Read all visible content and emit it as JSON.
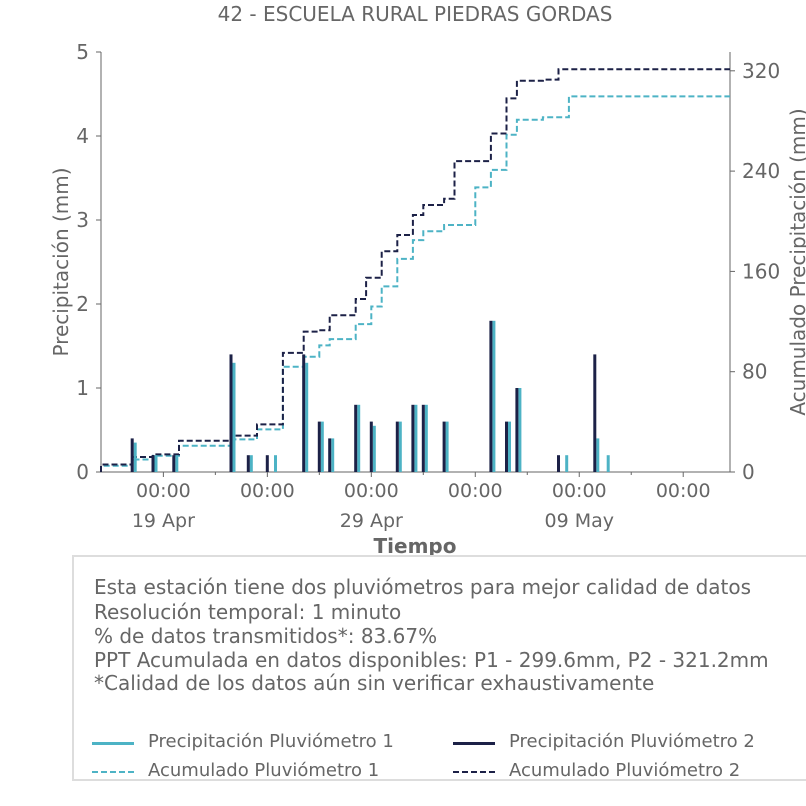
{
  "chart_data": {
    "type": "bar+line",
    "title": "42 - ESCUELA RURAL PIEDRAS GORDAS",
    "xlabel": "Tiempo",
    "ylabel_left": "Precipitación (mm)",
    "ylabel_right": "Acumulado Precipitación (mm)",
    "ylim_left": [
      0,
      5
    ],
    "ylim_right": [
      0,
      335
    ],
    "yticks_left": [
      "0",
      "1",
      "2",
      "3",
      "4",
      "5"
    ],
    "yticks_right": [
      "0",
      "80",
      "160",
      "240",
      "320"
    ],
    "xticks": [
      {
        "top": "00:00",
        "bottom": "19 Apr",
        "date": "2024-04-19"
      },
      {
        "top": "00:00",
        "bottom": "",
        "date": "2024-04-24"
      },
      {
        "top": "00:00",
        "bottom": "29 Apr",
        "date": "2024-04-29"
      },
      {
        "top": "00:00",
        "bottom": "",
        "date": "2024-05-04"
      },
      {
        "top": "00:00",
        "bottom": "09 May",
        "date": "2024-05-09"
      },
      {
        "top": "00:00",
        "bottom": "",
        "date": "2024-05-14"
      }
    ],
    "xlim": [
      "2024-04-16T00:00",
      "2024-05-16T06:00"
    ],
    "colors": {
      "p1": "#4db3c5",
      "p2": "#1c2147",
      "axis": "#666666"
    },
    "series": [
      {
        "name": "Precipitación Pluviómetro 1",
        "type": "bar",
        "axis": "left",
        "points": [
          [
            "2024-04-17T12:00",
            0.35
          ],
          [
            "2024-04-18T12:00",
            0.2
          ],
          [
            "2024-04-19T12:00",
            0.2
          ],
          [
            "2024-04-22T06:00",
            1.3
          ],
          [
            "2024-04-23T02:00",
            0.2
          ],
          [
            "2024-04-24T06:00",
            0.2
          ],
          [
            "2024-04-25T18:00",
            1.3
          ],
          [
            "2024-04-26T12:00",
            0.6
          ],
          [
            "2024-04-27T00:00",
            0.4
          ],
          [
            "2024-04-28T06:00",
            0.8
          ],
          [
            "2024-04-29T00:00",
            0.55
          ],
          [
            "2024-04-30T06:00",
            0.6
          ],
          [
            "2024-05-01T00:00",
            0.8
          ],
          [
            "2024-05-01T12:00",
            0.8
          ],
          [
            "2024-05-02T12:00",
            0.6
          ],
          [
            "2024-05-04T18:00",
            1.8
          ],
          [
            "2024-05-05T12:00",
            0.6
          ],
          [
            "2024-05-06T00:00",
            1.0
          ],
          [
            "2024-05-08T06:00",
            0.2
          ],
          [
            "2024-05-09T18:00",
            0.4
          ],
          [
            "2024-05-10T06:00",
            0.2
          ]
        ]
      },
      {
        "name": "Precipitación Pluviómetro 2",
        "type": "bar",
        "axis": "left",
        "points": [
          [
            "2024-04-17T12:00",
            0.4
          ],
          [
            "2024-04-18T12:00",
            0.2
          ],
          [
            "2024-04-19T12:00",
            0.2
          ],
          [
            "2024-04-22T06:00",
            1.4
          ],
          [
            "2024-04-23T02:00",
            0.2
          ],
          [
            "2024-04-24T00:00",
            0.2
          ],
          [
            "2024-04-25T18:00",
            1.4
          ],
          [
            "2024-04-26T12:00",
            0.6
          ],
          [
            "2024-04-27T00:00",
            0.4
          ],
          [
            "2024-04-28T06:00",
            0.8
          ],
          [
            "2024-04-29T00:00",
            0.6
          ],
          [
            "2024-04-30T06:00",
            0.6
          ],
          [
            "2024-05-01T00:00",
            0.8
          ],
          [
            "2024-05-01T12:00",
            0.8
          ],
          [
            "2024-05-02T12:00",
            0.6
          ],
          [
            "2024-05-04T18:00",
            1.8
          ],
          [
            "2024-05-05T12:00",
            0.6
          ],
          [
            "2024-05-06T00:00",
            1.0
          ],
          [
            "2024-05-08T00:00",
            0.2
          ],
          [
            "2024-05-09T18:00",
            1.4
          ]
        ]
      },
      {
        "name": "Acumulado Pluviómetro 1",
        "type": "step",
        "axis": "right",
        "dash": true,
        "points": [
          [
            "2024-04-16T00:00",
            0
          ],
          [
            "2024-04-17T12:00",
            5
          ],
          [
            "2024-04-18T12:00",
            10
          ],
          [
            "2024-04-19T18:00",
            13
          ],
          [
            "2024-04-22T06:00",
            21
          ],
          [
            "2024-04-23T12:00",
            26
          ],
          [
            "2024-04-24T18:00",
            34
          ],
          [
            "2024-04-25T18:00",
            84
          ],
          [
            "2024-04-26T12:00",
            92
          ],
          [
            "2024-04-27T00:00",
            101
          ],
          [
            "2024-04-28T06:00",
            106
          ],
          [
            "2024-04-29T00:00",
            118
          ],
          [
            "2024-04-29T12:00",
            132
          ],
          [
            "2024-04-30T06:00",
            148
          ],
          [
            "2024-05-01T00:00",
            170
          ],
          [
            "2024-05-01T12:00",
            185
          ],
          [
            "2024-05-02T12:00",
            192
          ],
          [
            "2024-05-04T00:00",
            197
          ],
          [
            "2024-05-04T18:00",
            227
          ],
          [
            "2024-05-05T12:00",
            241
          ],
          [
            "2024-05-06T00:00",
            269
          ],
          [
            "2024-05-07T06:00",
            281
          ],
          [
            "2024-05-08T12:00",
            283
          ],
          [
            "2024-05-09T18:00",
            299.6
          ],
          [
            "2024-05-16T06:00",
            299.6
          ]
        ]
      },
      {
        "name": "Acumulado Pluviómetro 2",
        "type": "step",
        "axis": "right",
        "dash": true,
        "points": [
          [
            "2024-04-16T00:00",
            0
          ],
          [
            "2024-04-17T12:00",
            6
          ],
          [
            "2024-04-18T12:00",
            12
          ],
          [
            "2024-04-19T18:00",
            14
          ],
          [
            "2024-04-22T06:00",
            25
          ],
          [
            "2024-04-23T12:00",
            29
          ],
          [
            "2024-04-24T18:00",
            38
          ],
          [
            "2024-04-25T18:00",
            95
          ],
          [
            "2024-04-26T12:00",
            112
          ],
          [
            "2024-04-27T00:00",
            113
          ],
          [
            "2024-04-28T06:00",
            125
          ],
          [
            "2024-04-28T18:00",
            138
          ],
          [
            "2024-04-29T12:00",
            155
          ],
          [
            "2024-04-30T06:00",
            176
          ],
          [
            "2024-05-01T00:00",
            189
          ],
          [
            "2024-05-01T12:00",
            205
          ],
          [
            "2024-05-02T12:00",
            213
          ],
          [
            "2024-05-03T00:00",
            218
          ],
          [
            "2024-05-04T18:00",
            248
          ],
          [
            "2024-05-05T12:00",
            270
          ],
          [
            "2024-05-06T00:00",
            298
          ],
          [
            "2024-05-07T06:00",
            312
          ],
          [
            "2024-05-08T00:00",
            313
          ],
          [
            "2024-05-09T18:00",
            321.2
          ],
          [
            "2024-05-16T06:00",
            321.2
          ]
        ]
      }
    ]
  },
  "info": {
    "lines": [
      "Esta estación tiene dos pluviómetros para mejor calidad de datos",
      "Resolución temporal: 1 minuto",
      "% de datos transmitidos*: 83.67%",
      "PPT Acumulada en datos disponibles: P1 - 299.6mm, P2 - 321.2mm",
      "*Calidad de los datos aún sin verificar exhaustivamente"
    ]
  },
  "legend": {
    "p1_bar": "Precipitación Pluviómetro 1",
    "p2_bar": "Precipitación Pluviómetro 2",
    "p1_acc": "Acumulado Pluviómetro 1",
    "p2_acc": "Acumulado Pluviómetro 2"
  }
}
